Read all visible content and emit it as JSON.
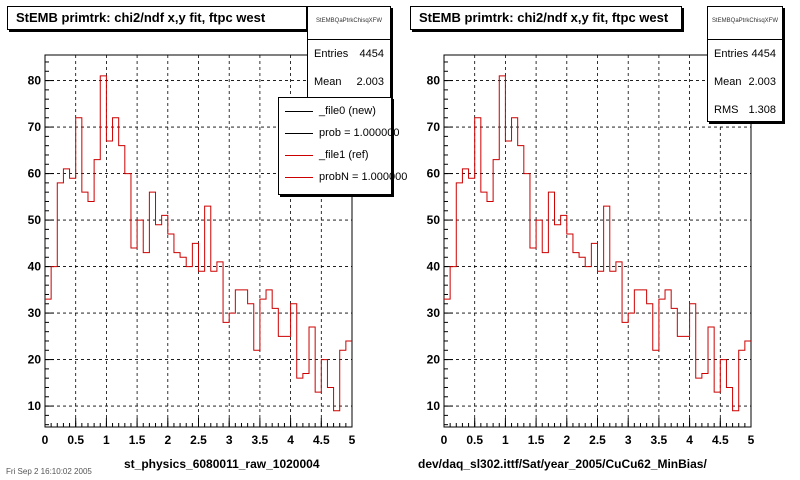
{
  "pads": [
    {
      "title": "StEMB primtrk: chi2/ndf x,y fit, ftpc west",
      "stats": {
        "name": "StEMBQaPtrkChisqXFW",
        "rows": [
          {
            "label": "Entries",
            "value": "4454"
          },
          {
            "label": "Mean",
            "value": "2.003"
          }
        ]
      },
      "legend": [
        {
          "label": "_file0 (new)",
          "color": "#000000"
        },
        {
          "label": "prob = 1.000000",
          "color": "#000000"
        },
        {
          "label": "_file1 (ref)",
          "color": "#cc0000"
        },
        {
          "label": "probN = 1.000000",
          "color": "#cc0000"
        }
      ],
      "xtitle": "st_physics_6080011_raw_1020004"
    },
    {
      "title": "StEMB primtrk: chi2/ndf x,y fit, ftpc west",
      "stats": {
        "name": "StEMBQaPtrkChisqXFW",
        "rows": [
          {
            "label": "Entries",
            "value": "4454"
          },
          {
            "label": "Mean",
            "value": "2.003"
          },
          {
            "label": "RMS",
            "value": "1.308"
          }
        ]
      },
      "legend": [],
      "xtitle": "dev/daq_sl302.ittf/Sat/year_2005/CuCu62_MinBias/"
    }
  ],
  "footer": "Fri Sep 2 16:10:02 2005",
  "chart_data": [
    {
      "type": "line",
      "xlim": [
        0,
        5
      ],
      "ylim": [
        5.5,
        85.5
      ],
      "xticks": [
        "0",
        "0.5",
        "1",
        "1.5",
        "2",
        "2.5",
        "3",
        "3.5",
        "4",
        "4.5",
        "5"
      ],
      "yticks": [
        "10",
        "20",
        "30",
        "40",
        "50",
        "60",
        "70",
        "80"
      ],
      "grid": true,
      "series": [
        {
          "name": "_file1 (ref)",
          "color": "#cc0000",
          "bin_width": 0.1,
          "values": [
            33,
            40,
            58,
            61,
            59,
            72,
            56,
            54,
            63,
            81,
            67,
            72,
            66,
            60,
            44,
            50,
            43,
            56,
            49,
            51,
            47,
            43,
            42,
            40,
            45,
            39,
            53,
            39,
            41,
            28,
            30,
            35,
            35,
            32,
            22,
            33,
            35,
            31,
            25,
            25,
            32,
            16,
            17,
            27,
            13,
            20,
            14,
            9,
            22,
            24
          ]
        }
      ]
    },
    {
      "type": "line",
      "xlim": [
        0,
        5
      ],
      "ylim": [
        5.5,
        85.5
      ],
      "xticks": [
        "0",
        "0.5",
        "1",
        "1.5",
        "2",
        "2.5",
        "3",
        "3.5",
        "4",
        "4.5",
        "5"
      ],
      "yticks": [
        "10",
        "20",
        "30",
        "40",
        "50",
        "60",
        "70",
        "80"
      ],
      "grid": true,
      "series": [
        {
          "name": "",
          "color": "#cc0000",
          "bin_width": 0.1,
          "values": [
            33,
            40,
            58,
            61,
            59,
            72,
            56,
            54,
            63,
            81,
            67,
            72,
            66,
            60,
            44,
            50,
            43,
            56,
            49,
            51,
            47,
            43,
            42,
            40,
            45,
            39,
            53,
            39,
            41,
            28,
            30,
            35,
            35,
            32,
            22,
            33,
            35,
            31,
            25,
            25,
            32,
            16,
            17,
            27,
            13,
            20,
            14,
            9,
            22,
            24
          ]
        }
      ]
    }
  ]
}
